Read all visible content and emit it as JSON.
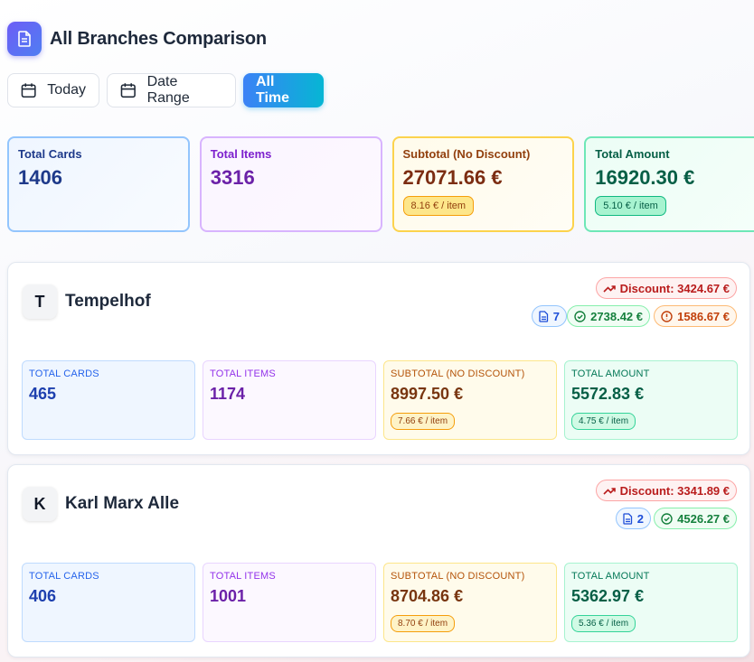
{
  "header": {
    "title": "All Branches Comparison",
    "icon": "document-icon",
    "icon_color": "#5b6cf5"
  },
  "filters": [
    {
      "label": "Today",
      "icon": "calendar-icon",
      "active": false
    },
    {
      "label": "Date Range",
      "icon": "calendar-icon",
      "active": false
    },
    {
      "label": "All Time",
      "active": true
    }
  ],
  "summary": {
    "total_cards": {
      "label": "Total Cards",
      "value": "1406"
    },
    "total_items": {
      "label": "Total Items",
      "value": "3316"
    },
    "subtotal": {
      "label": "Subtotal (No Discount)",
      "value": "27071.66 €",
      "per_item": "8.16 € / item"
    },
    "total_amount": {
      "label": "Total Amount",
      "value": "16920.30 €",
      "per_item": "5.10 € / item"
    }
  },
  "branches": [
    {
      "initial": "T",
      "name": "Tempelhof",
      "discount": "Discount: 3424.67 €",
      "docs": "7",
      "paid": "2738.42 €",
      "open": "1586.67 €",
      "metrics": {
        "cards_label": "Total Cards",
        "cards": "465",
        "items_label": "Total Items",
        "items": "1174",
        "subtotal_label": "Subtotal (No Discount)",
        "subtotal": "8997.50 €",
        "subtotal_per_item": "7.66 € / item",
        "amount_label": "Total Amount",
        "amount": "5572.83 €",
        "amount_per_item": "4.75 € / item"
      }
    },
    {
      "initial": "K",
      "name": "Karl Marx Alle",
      "discount": "Discount: 3341.89 €",
      "docs": "2",
      "paid": "4526.27 €",
      "metrics": {
        "cards_label": "Total Cards",
        "cards": "406",
        "items_label": "Total Items",
        "items": "1001",
        "subtotal_label": "Subtotal (No Discount)",
        "subtotal": "8704.86 €",
        "subtotal_per_item": "8.70 € / item",
        "amount_label": "Total Amount",
        "amount": "5362.97 €",
        "amount_per_item": "5.36 € / item"
      }
    }
  ],
  "colors": {
    "accent": "#3b82f6",
    "discount": "#b91c1c",
    "paid": "#15803d",
    "open": "#c2410c"
  }
}
